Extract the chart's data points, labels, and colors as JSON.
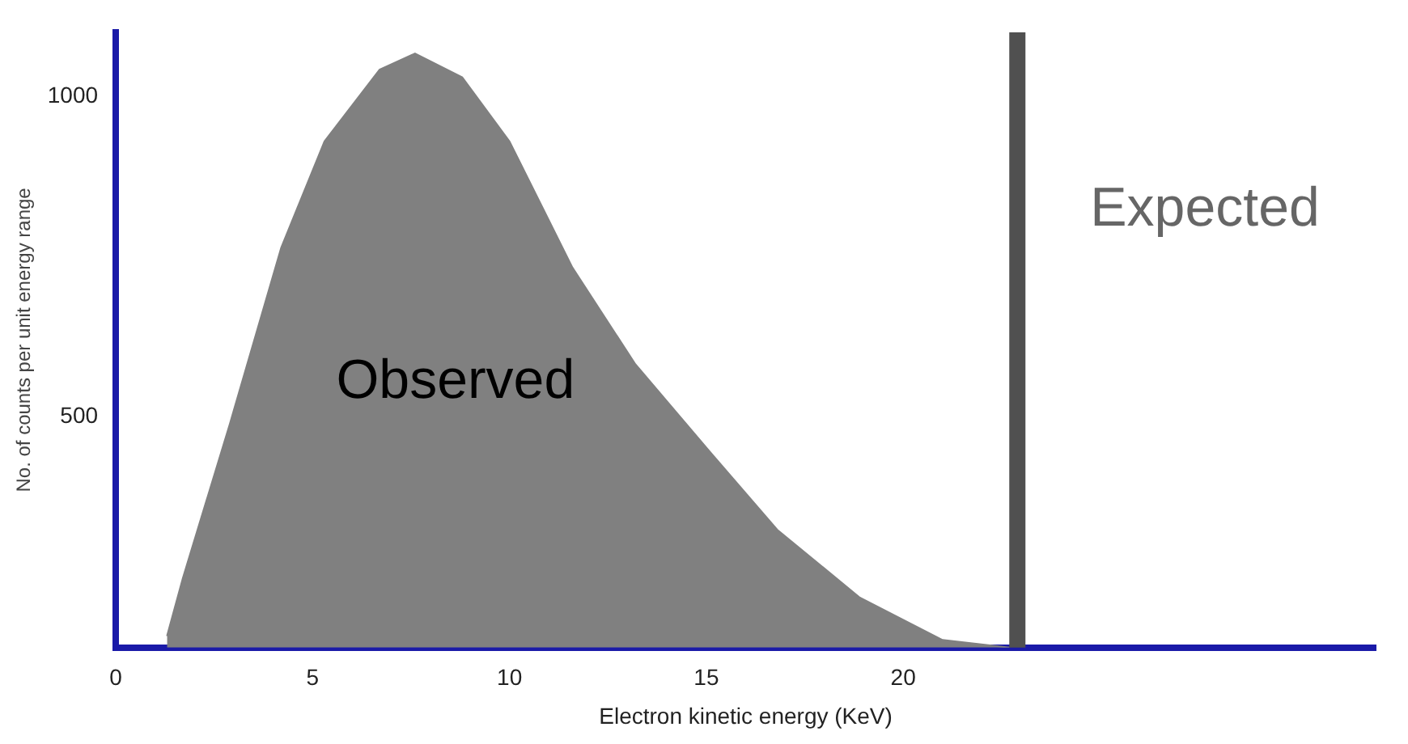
{
  "chart_data": {
    "type": "area",
    "xlabel": "Electron kinetic energy (KeV)",
    "ylabel": "No. of counts per unit energy range",
    "x": [
      1.3,
      1.7,
      2.9,
      4.2,
      5.3,
      6.7,
      7.6,
      8.8,
      10,
      11.6,
      13.2,
      15.1,
      16.8,
      18.9,
      21,
      22.7
    ],
    "series": [
      {
        "name": "Observed",
        "color": "#808080",
        "values": [
          158,
          248,
          490,
          764,
          930,
          1042,
          1067,
          1030,
          930,
          733,
          582,
          445,
          324,
          218,
          152,
          140
        ]
      }
    ],
    "xlim": [
      0,
      32
    ],
    "xticks": [
      0,
      5,
      10,
      15,
      20
    ],
    "ylim": [
      140,
      1100
    ],
    "yticks": [
      500,
      1000
    ],
    "ref_lines": [
      {
        "axis": "x",
        "value": 22.9,
        "label": "Expected",
        "color": "#505050"
      }
    ],
    "grid": false,
    "legend": false
  }
}
